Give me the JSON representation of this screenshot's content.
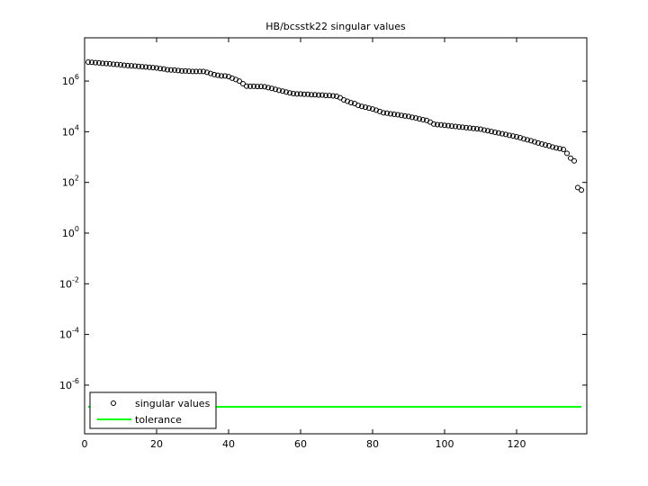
{
  "chart_data": {
    "type": "scatter",
    "title": "HB/bcsstk22 singular values",
    "xlim": [
      0,
      139.5
    ],
    "xticks": [
      0,
      20,
      40,
      60,
      80,
      100,
      120
    ],
    "ylim": [
      1.2e-08,
      51000000.0
    ],
    "yscale": "log",
    "yticks": [
      {
        "value": 1e-06,
        "label": "10^-6"
      },
      {
        "value": 0.0001,
        "label": "10^-4"
      },
      {
        "value": 0.01,
        "label": "10^-2"
      },
      {
        "value": 1,
        "label": "10^0"
      },
      {
        "value": 100,
        "label": "10^2"
      },
      {
        "value": 10000,
        "label": "10^4"
      },
      {
        "value": 1000000,
        "label": "10^6"
      }
    ],
    "legend": "lower left",
    "series": [
      {
        "name": "singular values",
        "color": "#000000",
        "marker": "circle",
        "x": [
          1,
          2,
          3,
          4,
          5,
          6,
          7,
          8,
          9,
          10,
          11,
          12,
          13,
          14,
          15,
          16,
          17,
          18,
          19,
          20,
          21,
          22,
          23,
          24,
          25,
          26,
          27,
          28,
          29,
          30,
          31,
          32,
          33,
          34,
          35,
          36,
          37,
          38,
          39,
          40,
          41,
          42,
          43,
          44,
          45,
          46,
          47,
          48,
          49,
          50,
          51,
          52,
          53,
          54,
          55,
          56,
          57,
          58,
          59,
          60,
          61,
          62,
          63,
          64,
          65,
          66,
          67,
          68,
          69,
          70,
          71,
          72,
          73,
          74,
          75,
          76,
          77,
          78,
          79,
          80,
          81,
          82,
          83,
          84,
          85,
          86,
          87,
          88,
          89,
          90,
          91,
          92,
          93,
          94,
          95,
          96,
          97,
          98,
          99,
          100,
          101,
          102,
          103,
          104,
          105,
          106,
          107,
          108,
          109,
          110,
          111,
          112,
          113,
          114,
          115,
          116,
          117,
          118,
          119,
          120,
          121,
          122,
          123,
          124,
          125,
          126,
          127,
          128,
          129,
          130,
          131,
          132,
          133,
          134,
          135,
          136,
          137,
          138
        ],
        "values": [
          5600000.0,
          5500000.0,
          5300000.0,
          5200000.0,
          5000000.0,
          4900000.0,
          4800000.0,
          4600000.0,
          4500000.0,
          4400000.0,
          4200000.0,
          4100000.0,
          4000000.0,
          3900000.0,
          3800000.0,
          3700000.0,
          3600000.0,
          3500000.0,
          3400000.0,
          3300000.0,
          3100000.0,
          3000000.0,
          2800000.0,
          2750000.0,
          2700000.0,
          2600000.0,
          2500000.0,
          2500000.0,
          2450000.0,
          2400000.0,
          2400000.0,
          2400000.0,
          2400000.0,
          2200000.0,
          2000000.0,
          1800000.0,
          1700000.0,
          1600000.0,
          1600000.0,
          1500000.0,
          1300000.0,
          1150000.0,
          1000000.0,
          790000.0,
          630000.0,
          620000.0,
          620000.0,
          610000.0,
          610000.0,
          600000.0,
          550000.0,
          510000.0,
          470000.0,
          430000.0,
          400000.0,
          370000.0,
          340000.0,
          320000.0,
          310000.0,
          310000.0,
          300000.0,
          300000.0,
          290000.0,
          290000.0,
          280000.0,
          280000.0,
          270000.0,
          270000.0,
          260000.0,
          250000.0,
          220000.0,
          180000.0,
          160000.0,
          140000.0,
          130000.0,
          110000.0,
          100000.0,
          93000.0,
          86000.0,
          79000.0,
          71000.0,
          63000.0,
          56000.0,
          54000.0,
          51000.0,
          49000.0,
          47000.0,
          44000.0,
          42000.0,
          40000.0,
          37000.0,
          35000.0,
          32000.0,
          30000.0,
          28000.0,
          24000.0,
          20000.0,
          19000.0,
          18600.0,
          18000.0,
          17300.0,
          16700.0,
          16100.0,
          15600.0,
          15000.0,
          14500.0,
          14000.0,
          13500.0,
          13000.0,
          12600.0,
          11700.0,
          11000.0,
          10200.0,
          9500.0,
          8900.0,
          8300.0,
          7800.0,
          7200.0,
          6800.0,
          6300.0,
          5800.0,
          5200.0,
          4800.0,
          4400.0,
          4000.0,
          3600.0,
          3300.0,
          3000.0,
          2800.0,
          2500.0,
          2300.0,
          2150.0,
          2000.0,
          1400.0,
          910,
          710,
          63,
          50
        ]
      },
      {
        "name": "tolerance",
        "color": "#00ff00",
        "marker": "line",
        "x": [
          1,
          138
        ],
        "values": [
          1.4e-07,
          1.4e-07
        ]
      }
    ]
  }
}
